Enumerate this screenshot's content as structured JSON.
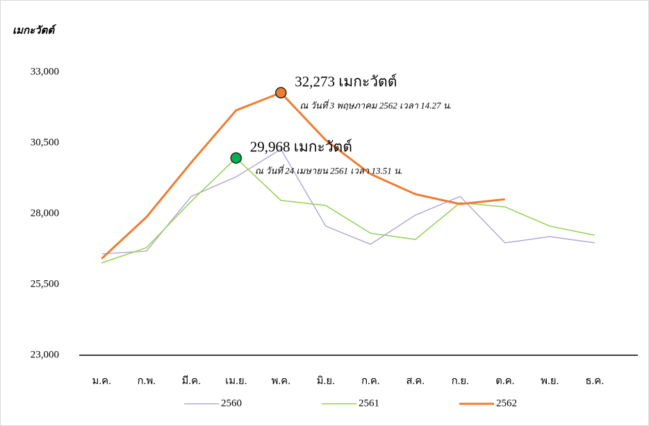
{
  "chart_data": {
    "type": "line",
    "y_label": "เมกะวัตต์",
    "categories": [
      "ม.ค.",
      "ก.พ.",
      "มี.ค.",
      "เม.ย.",
      "พ.ค.",
      "มิ.ย.",
      "ก.ค.",
      "ส.ค.",
      "ก.ย.",
      "ต.ค.",
      "พ.ย.",
      "ธ.ค."
    ],
    "series": [
      {
        "name": "2560",
        "color": "#b4a7d6",
        "width": 1.5,
        "values": [
          26580,
          26680,
          28610,
          29300,
          30280,
          27560,
          26920,
          27950,
          28610,
          26970,
          27190,
          26970
        ]
      },
      {
        "name": "2561",
        "color": "#92d050",
        "width": 1.5,
        "values": [
          26260,
          26800,
          28440,
          29968,
          28470,
          28290,
          27310,
          27090,
          28390,
          28240,
          27560,
          27240
        ],
        "highlight": 3,
        "marker_color": "#00b050",
        "label": "29,968 เมกะวัตต์",
        "note": "ณ วันที่ 24 เมษายน 2561 เวลา 13.51 น."
      },
      {
        "name": "2562",
        "color": "#ed7d31",
        "width": 3,
        "values": [
          26410,
          27880,
          29810,
          31650,
          32273,
          30600,
          29400,
          28690,
          28340,
          28510,
          null,
          null
        ],
        "highlight": 4,
        "marker_color": "#ed7d31",
        "label": "32,273 เมกะวัตต์",
        "note": "ณ วันที่ 3 พฤษภาคม 2562 เวลา 14.27 น."
      }
    ],
    "ylim": [
      23000,
      33000
    ],
    "yticks": [
      {
        "value": 23000,
        "label": "23,000"
      },
      {
        "value": 25500,
        "label": "25,500"
      },
      {
        "value": 28000,
        "label": "28,000"
      },
      {
        "value": 30500,
        "label": "30,500"
      },
      {
        "value": 33000,
        "label": "33,000"
      }
    ],
    "grid": false,
    "legend": "bottom"
  }
}
